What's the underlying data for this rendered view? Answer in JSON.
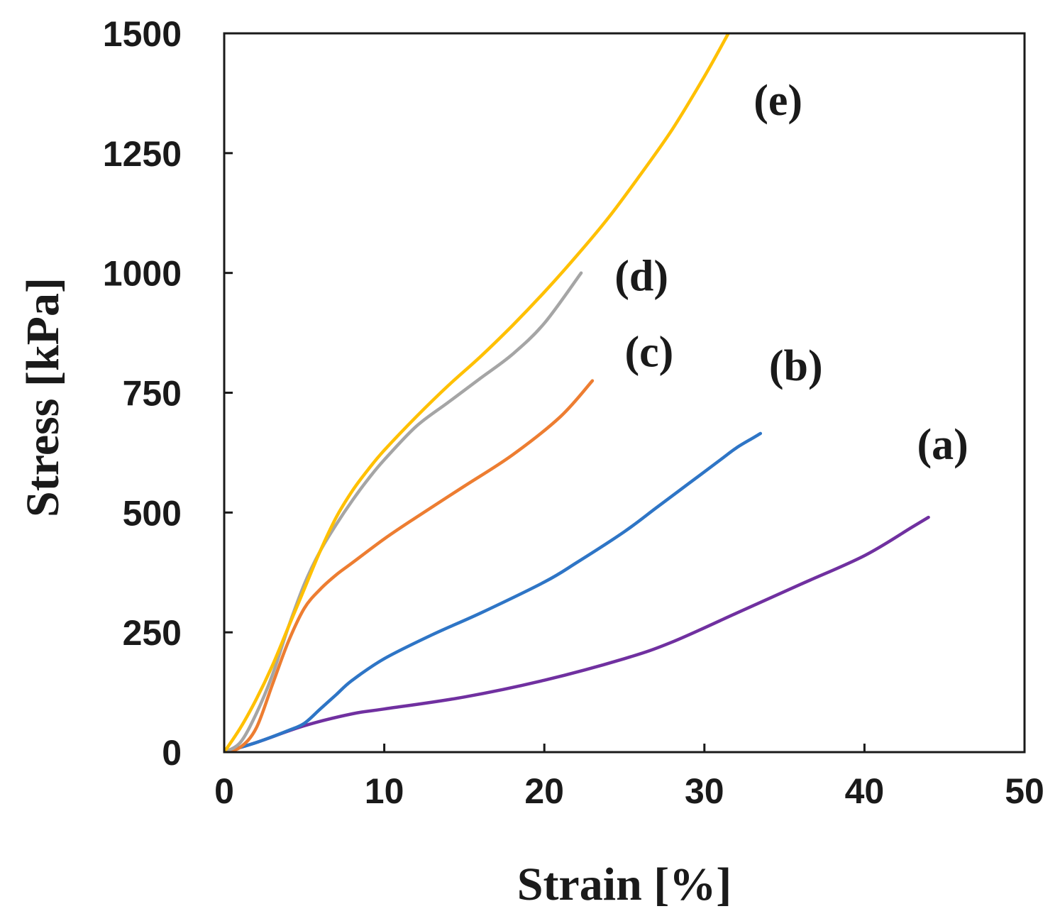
{
  "chart_data": {
    "type": "line",
    "title": "",
    "xlabel": "Strain [%]",
    "ylabel": "Stress [kPa]",
    "xlim": [
      0,
      50
    ],
    "ylim": [
      0,
      1500
    ],
    "xticks": [
      0,
      10,
      20,
      30,
      40,
      50
    ],
    "yticks": [
      0,
      250,
      500,
      750,
      1000,
      1250,
      1500
    ],
    "grid": false,
    "legend": "inline labels at line ends",
    "series": [
      {
        "name": "(a)",
        "color": "#7030a0",
        "x": [
          0,
          2,
          5,
          8,
          10,
          15,
          20,
          25,
          28,
          32,
          36,
          40,
          43,
          44
        ],
        "y": [
          0,
          20,
          55,
          80,
          90,
          115,
          150,
          195,
          230,
          290,
          350,
          410,
          470,
          490
        ]
      },
      {
        "name": "(b)",
        "color": "#2e75c6",
        "x": [
          0,
          2,
          4,
          5,
          6,
          7,
          8,
          10,
          13,
          16,
          20,
          22,
          25,
          27,
          29,
          31,
          32,
          33,
          33.5
        ],
        "y": [
          0,
          20,
          45,
          60,
          90,
          120,
          150,
          195,
          245,
          290,
          355,
          395,
          460,
          510,
          560,
          610,
          635,
          655,
          665
        ]
      },
      {
        "name": "(c)",
        "color": "#ed7d31",
        "x": [
          0,
          1,
          2,
          3,
          4,
          5,
          6,
          7,
          8,
          10,
          12,
          15,
          18,
          21,
          23
        ],
        "y": [
          0,
          10,
          50,
          140,
          230,
          300,
          340,
          370,
          395,
          445,
          490,
          555,
          620,
          700,
          775
        ]
      },
      {
        "name": "(d)",
        "color": "#a5a5a5",
        "x": [
          0,
          1,
          2,
          3,
          4,
          5,
          6,
          7,
          8,
          9,
          10,
          12,
          14,
          16,
          18,
          20,
          22.3
        ],
        "y": [
          0,
          20,
          80,
          160,
          260,
          350,
          420,
          475,
          525,
          570,
          610,
          680,
          730,
          780,
          830,
          895,
          1000
        ]
      },
      {
        "name": "(e)",
        "color": "#ffc000",
        "x": [
          0,
          1,
          2,
          3,
          4,
          5,
          6,
          7,
          8,
          9,
          10,
          12,
          14,
          16,
          18,
          20,
          22,
          24,
          26,
          28,
          30,
          31.5
        ],
        "y": [
          0,
          50,
          110,
          180,
          260,
          340,
          420,
          490,
          545,
          590,
          630,
          700,
          765,
          825,
          890,
          960,
          1035,
          1115,
          1205,
          1300,
          1410,
          1500
        ]
      }
    ]
  }
}
